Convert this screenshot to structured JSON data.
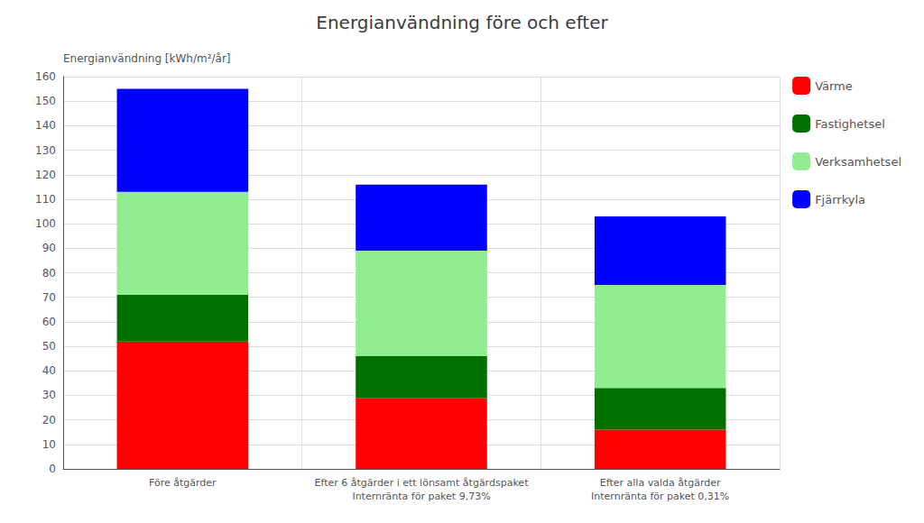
{
  "chart_data": {
    "type": "bar",
    "title": "Energianvändning före och efter",
    "ylabel": "Energianvändning [kWh/m²/år]",
    "categories": [
      "Före åtgärder",
      "Efter 6 åtgärder i ett lönsamt åtgärdspaket\nInternränta för paket 9,73%",
      "Efter alla valda åtgärder\nInternränta för paket 0,31%"
    ],
    "series": [
      {
        "name": "Värme",
        "color": "#ff0000",
        "values": [
          52,
          29,
          16
        ]
      },
      {
        "name": "Fastighetsel",
        "color": "#007000",
        "values": [
          19,
          17,
          17
        ]
      },
      {
        "name": "Verksamhetsel",
        "color": "#90ee90",
        "values": [
          42,
          43,
          42
        ]
      },
      {
        "name": "Fjärrkyla",
        "color": "#0000ff",
        "values": [
          42,
          27,
          28
        ]
      }
    ],
    "stacked": true,
    "ylim": [
      0,
      160
    ],
    "yticks": [
      0,
      10,
      20,
      30,
      40,
      50,
      60,
      70,
      80,
      90,
      100,
      110,
      120,
      130,
      140,
      150,
      160
    ],
    "grid": true,
    "legend": "right"
  }
}
